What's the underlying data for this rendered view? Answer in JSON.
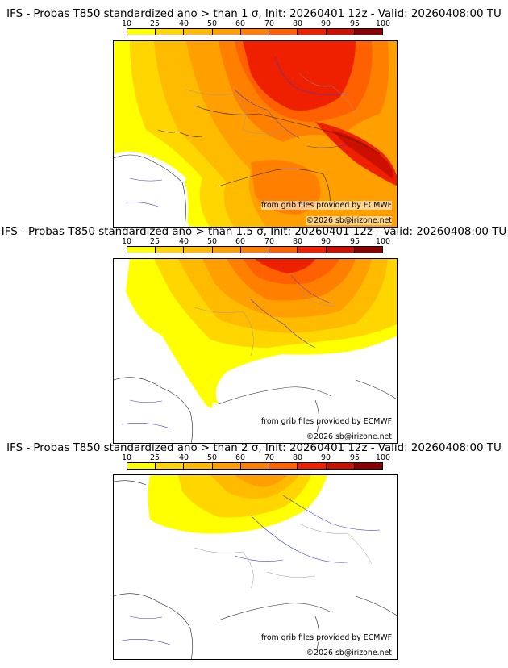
{
  "colorbar": {
    "labels": [
      "10",
      "25",
      "40",
      "50",
      "60",
      "70",
      "80",
      "90",
      "95",
      "100"
    ],
    "colors": [
      "#ffff00",
      "#ffd600",
      "#ffbb00",
      "#ffa000",
      "#ff8000",
      "#ff6000",
      "#ee2000",
      "#cc1000",
      "#8b0000"
    ]
  },
  "panels": [
    {
      "title": "IFS - Probas T850  standardized ano > than 1 σ, Init: 20260401 12z - Valid: 20260408:00 TU",
      "credit_source": "from grib files provided by ECMWF",
      "credit_author": "©2026 sb@irizone.net"
    },
    {
      "title": "IFS - Probas T850  standardized ano > than 1.5 σ, Init: 20260401 12z - Valid: 20260408:00 TU",
      "credit_source": "from grib files provided by ECMWF",
      "credit_author": "©2026 sb@irizone.net"
    },
    {
      "title": "IFS - Probas T850  standardized ano > than 2 σ, Init: 20260401 12z - Valid: 20260408:00 TU",
      "credit_source": "from grib files provided by ECMWF",
      "credit_author": "©2026 sb@irizone.net"
    }
  ]
}
